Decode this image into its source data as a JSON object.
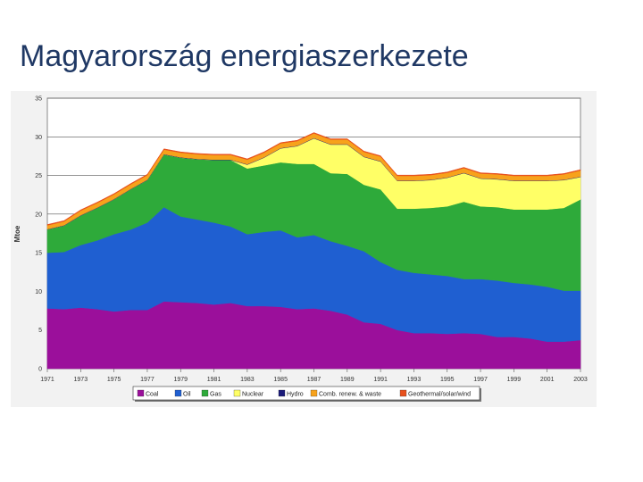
{
  "slide": {
    "title": "Magyarország energiaszerkezete"
  },
  "chart_data": {
    "type": "area",
    "stacked": true,
    "title": "",
    "xlabel": "",
    "ylabel": "Mtoe",
    "ylim": [
      0,
      35
    ],
    "yticks": [
      0,
      5,
      10,
      15,
      20,
      25,
      30,
      35
    ],
    "grid": true,
    "legend_position": "bottom",
    "xtick_labels": [
      "1971",
      "1973",
      "1975",
      "1977",
      "1979",
      "1981",
      "1983",
      "1985",
      "1987",
      "1989",
      "1991",
      "1993",
      "1995",
      "1997",
      "1999",
      "2001",
      "2003"
    ],
    "x": [
      1971,
      1972,
      1973,
      1974,
      1975,
      1976,
      1977,
      1978,
      1979,
      1980,
      1981,
      1982,
      1983,
      1984,
      1985,
      1986,
      1987,
      1988,
      1989,
      1990,
      1991,
      1992,
      1993,
      1994,
      1995,
      1996,
      1997,
      1998,
      1999,
      2000,
      2001,
      2002,
      2003
    ],
    "series": [
      {
        "name": "Coal",
        "color": "#9b0f9b",
        "values": [
          7.8,
          7.7,
          7.9,
          7.7,
          7.4,
          7.6,
          7.6,
          8.7,
          8.6,
          8.5,
          8.3,
          8.5,
          8.1,
          8.1,
          8.0,
          7.7,
          7.8,
          7.5,
          7.0,
          6.0,
          5.8,
          5.0,
          4.6,
          4.6,
          4.5,
          4.6,
          4.5,
          4.1,
          4.1,
          3.9,
          3.5,
          3.5,
          3.7
        ]
      },
      {
        "name": "Oil",
        "color": "#1f5fd1",
        "values": [
          7.2,
          7.4,
          8.1,
          8.9,
          10.0,
          10.4,
          11.3,
          12.2,
          11.1,
          10.8,
          10.6,
          9.9,
          9.3,
          9.6,
          9.9,
          9.3,
          9.5,
          9.0,
          8.9,
          9.2,
          8.0,
          7.8,
          7.8,
          7.6,
          7.5,
          7.0,
          7.1,
          7.3,
          7.0,
          7.0,
          7.1,
          6.6,
          6.4
        ]
      },
      {
        "name": "Gas",
        "color": "#2eaa3a",
        "values": [
          3.0,
          3.4,
          3.8,
          4.2,
          4.5,
          5.2,
          5.5,
          6.8,
          7.6,
          7.8,
          8.1,
          8.6,
          8.5,
          8.6,
          8.8,
          9.5,
          9.2,
          8.8,
          9.3,
          8.6,
          9.4,
          7.9,
          8.3,
          8.6,
          9.0,
          10.0,
          9.4,
          9.5,
          9.5,
          9.7,
          10.0,
          10.7,
          11.8
        ]
      },
      {
        "name": "Nuclear",
        "color": "#ffff66",
        "values": [
          0,
          0,
          0,
          0,
          0,
          0,
          0,
          0,
          0,
          0,
          0,
          0,
          0.5,
          1.0,
          1.8,
          2.3,
          3.3,
          3.7,
          3.8,
          3.6,
          3.6,
          3.6,
          3.6,
          3.6,
          3.7,
          3.7,
          3.6,
          3.6,
          3.7,
          3.7,
          3.7,
          3.6,
          2.9
        ]
      },
      {
        "name": "Hydro",
        "color": "#1a1a7a",
        "values": [
          0.05,
          0.05,
          0.05,
          0.05,
          0.05,
          0.05,
          0.05,
          0.05,
          0.05,
          0.05,
          0.05,
          0.05,
          0.05,
          0.05,
          0.05,
          0.05,
          0.05,
          0.05,
          0.05,
          0.05,
          0.05,
          0.05,
          0.05,
          0.05,
          0.05,
          0.05,
          0.05,
          0.05,
          0.05,
          0.05,
          0.05,
          0.05,
          0.05
        ]
      },
      {
        "name": "Comb. renew. & waste",
        "color": "#f7a21b",
        "values": [
          0.5,
          0.5,
          0.6,
          0.6,
          0.6,
          0.6,
          0.6,
          0.6,
          0.6,
          0.6,
          0.6,
          0.6,
          0.6,
          0.6,
          0.6,
          0.6,
          0.6,
          0.6,
          0.6,
          0.6,
          0.6,
          0.6,
          0.6,
          0.6,
          0.6,
          0.6,
          0.6,
          0.6,
          0.6,
          0.6,
          0.6,
          0.7,
          0.8
        ]
      },
      {
        "name": "Geothermal/solar/wind",
        "color": "#e8501c",
        "values": [
          0.1,
          0.1,
          0.1,
          0.1,
          0.1,
          0.1,
          0.1,
          0.1,
          0.1,
          0.1,
          0.1,
          0.1,
          0.1,
          0.1,
          0.1,
          0.1,
          0.1,
          0.1,
          0.1,
          0.1,
          0.1,
          0.1,
          0.1,
          0.1,
          0.1,
          0.1,
          0.1,
          0.1,
          0.1,
          0.1,
          0.1,
          0.1,
          0.1
        ]
      }
    ]
  }
}
